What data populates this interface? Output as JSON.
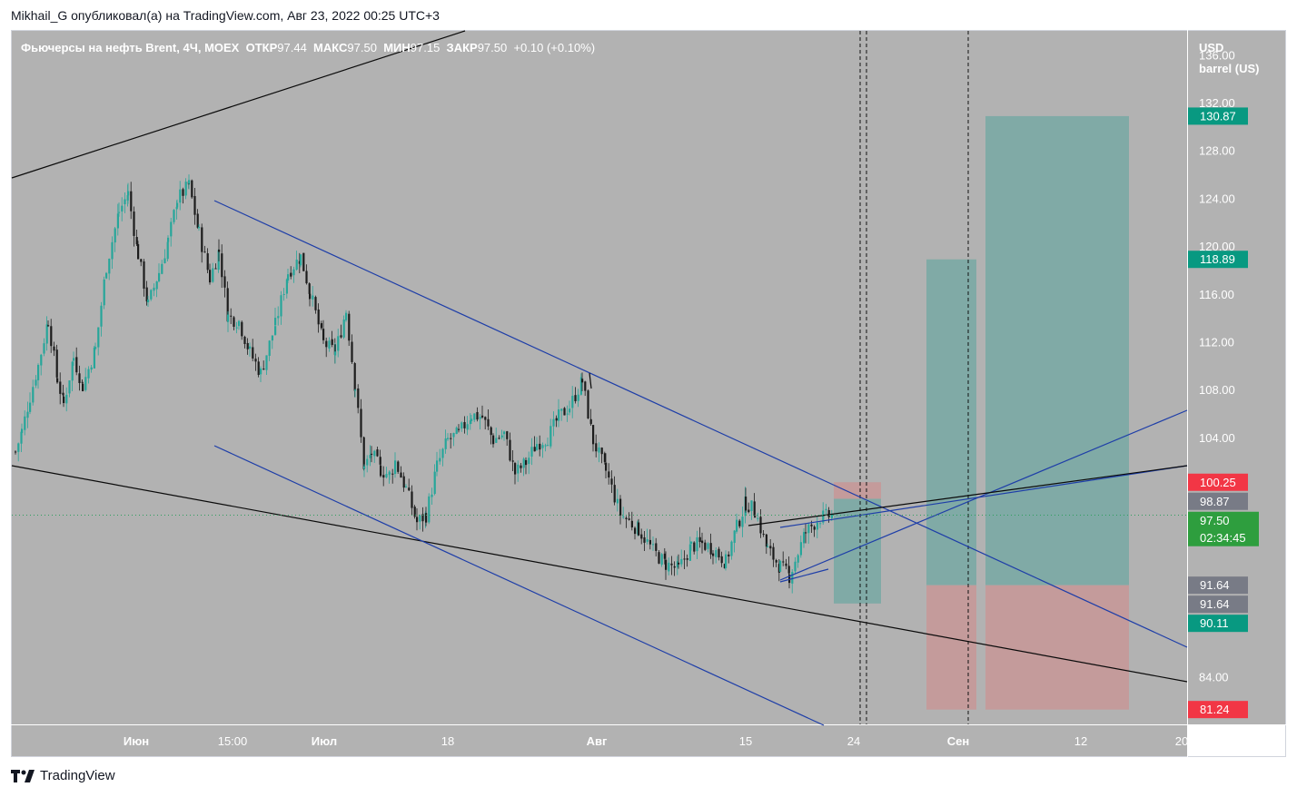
{
  "header": {
    "author": "Mikhail_G",
    "published_text": "опубликовал(а) на TradingView.com,",
    "datetime": "Авг 23, 2022 00:25 UTC+3"
  },
  "legend": {
    "instrument": "Фьючерсы на нефть Brent, 4Ч, MOEX",
    "open_label": "ОТКР",
    "open_value": "97.44",
    "high_label": "МАКС",
    "high_value": "97.50",
    "low_label": "МИН",
    "low_value": "97.15",
    "close_label": "ЗАКР",
    "close_value": "97.50",
    "change": "+0.10 (+0.10%)"
  },
  "currency": {
    "line1": "USD",
    "line2": "barrel (US)"
  },
  "footer": {
    "logo_text": "TradingView"
  },
  "colors": {
    "plot_bg": "#b2b2b2",
    "up_candle": "#26a69a",
    "down_candle": "#1c1c1c",
    "blue_lines": "#1e3ea8",
    "black_lines": "#0a0a0a",
    "profit_zone": "#80aaa6",
    "loss_zone": "#c49b9b",
    "badge_green": "#089981",
    "badge_red": "#f23645",
    "badge_gray": "#787b86",
    "axis_text": "#ffffff"
  },
  "chart_data": {
    "type": "candlestick",
    "title": "",
    "xlabel": "",
    "ylabel": "",
    "ylim": [
      80,
      138
    ],
    "x_tick_labels": [
      "Июн",
      "15:00",
      "Июл",
      "18",
      "Авг",
      "15",
      "24",
      "Сен",
      "12",
      "20"
    ],
    "x_tick_bold": [
      true,
      false,
      true,
      false,
      true,
      false,
      false,
      true,
      false,
      false
    ],
    "y_ticks": [
      "136.00",
      "132.00",
      "128.00",
      "124.00",
      "120.00",
      "116.00",
      "112.00",
      "108.00",
      "104.00",
      "84.00"
    ],
    "y_tick_values": [
      136,
      132,
      128,
      124,
      120,
      116,
      112,
      108,
      104,
      84
    ],
    "close_series": [
      102.8,
      104.5,
      107.4,
      110.0,
      113.8,
      108.9,
      106.8,
      110.7,
      108.3,
      111.4,
      118.3,
      122.9,
      124.4,
      119.3,
      115.1,
      117.8,
      120.4,
      123.9,
      125.1,
      121.1,
      117.3,
      119.6,
      114.1,
      113.7,
      111.1,
      109.4,
      113.4,
      117.8,
      119.1,
      116.2,
      111.9,
      111.1,
      114.6,
      108.2,
      101.4,
      102.7,
      101.3,
      100.8,
      102.0,
      99.7,
      96.9,
      97.5,
      101.6,
      103.8,
      104.3,
      105.9,
      105.7,
      103.8,
      104.3,
      101.0,
      101.9,
      103.5,
      104.0,
      105.7,
      106.6,
      108.7,
      103.7,
      101.2,
      97.6,
      96.3,
      94.5,
      93.4,
      93.0,
      94.9,
      95.1,
      94.7,
      93.6,
      96.5,
      98.5,
      97.9,
      94.6,
      93.2,
      92.4,
      96.1,
      97.3,
      97.5
    ],
    "last_price": "97.50",
    "price_labels": [
      {
        "value": "130.87",
        "kind": "green"
      },
      {
        "value": "118.89",
        "kind": "green"
      },
      {
        "value": "100.25",
        "kind": "red"
      },
      {
        "value": "98.87",
        "kind": "gray"
      },
      {
        "value": "97.50",
        "kind": "green-current"
      },
      {
        "value": "91.64",
        "kind": "gray"
      },
      {
        "value": "91.64",
        "kind": "gray"
      },
      {
        "value": "90.11",
        "kind": "green"
      },
      {
        "value": "81.24",
        "kind": "red"
      }
    ],
    "countdown": "02:34:45",
    "position_tools": [
      {
        "entry": 91.64,
        "target": 118.89,
        "stop": 81.24
      },
      {
        "entry": 91.64,
        "target": 130.87,
        "stop": 81.24
      },
      {
        "entry": 98.87,
        "target": 90.11,
        "stop": 100.25
      }
    ],
    "grid": false,
    "legend_position": "top-left"
  }
}
